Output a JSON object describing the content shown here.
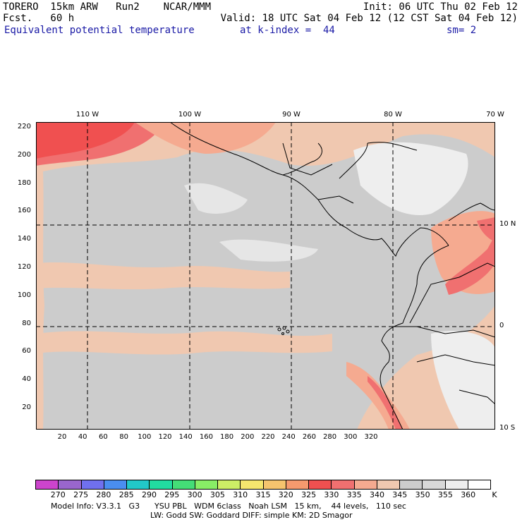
{
  "header": {
    "line1_left": "TORERO  15km ARW   Run2    NCAR/MMM",
    "line1_right": "Init: 06 UTC Thu 02 Feb 12",
    "line2_left": "Fcst.   60 h",
    "line2_right": "Valid: 18 UTC Sat 04 Feb 12 (12 CST Sat 04 Feb 12)",
    "field_name": "Equivalent potential temperature",
    "level": "at k-index =  44",
    "smoothing": "sm= 2"
  },
  "map": {
    "x_ticks": [
      "20",
      "40",
      "60",
      "80",
      "100",
      "120",
      "140",
      "160",
      "180",
      "200",
      "220",
      "240",
      "260",
      "280",
      "300",
      "320"
    ],
    "y_ticks": [
      "20",
      "40",
      "60",
      "80",
      "100",
      "120",
      "140",
      "160",
      "180",
      "200",
      "220"
    ],
    "lon_labels": [
      "110 W",
      "100 W",
      "90 W",
      "80 W",
      "70 W"
    ],
    "lat_labels": [
      "10 N",
      "0",
      "10 S"
    ]
  },
  "colorbar": {
    "labels": [
      "270",
      "275",
      "280",
      "285",
      "290",
      "295",
      "300",
      "305",
      "310",
      "315",
      "320",
      "325",
      "330",
      "335",
      "340",
      "345",
      "350",
      "355",
      "360"
    ],
    "unit": "K",
    "colors": [
      "#cc44cc",
      "#9966cc",
      "#7070ee",
      "#4a8ef0",
      "#22c8c8",
      "#22dca0",
      "#44dd77",
      "#88ee66",
      "#ccee66",
      "#f5e66e",
      "#f5c46e",
      "#f59a6e",
      "#f05050",
      "#f07070",
      "#f5aa90",
      "#f0c8b0",
      "#cccccc",
      "#d8d8d8",
      "#eeeeee",
      "#ffffff"
    ]
  },
  "footer": {
    "line1": "Model Info: V3.3.1   G3      YSU PBL   WDM 6class   Noah LSM   15 km,    44 levels,   110 sec",
    "line2": "LW: Godd SW: Goddard DIFF: simple KM: 2D Smagor"
  }
}
